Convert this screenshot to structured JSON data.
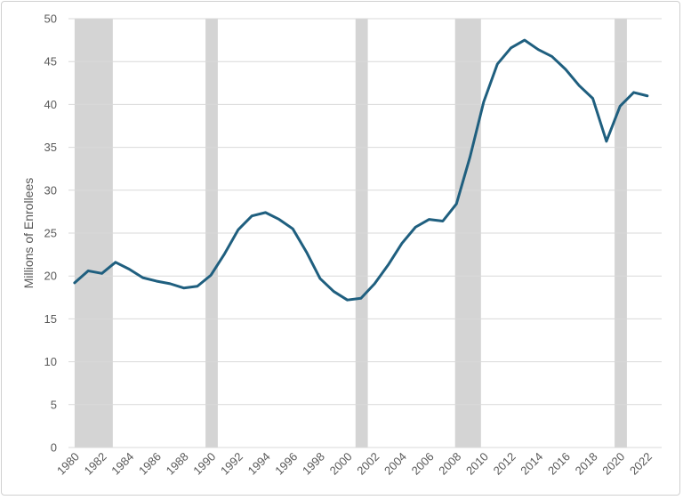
{
  "chart_data": {
    "type": "line",
    "title": "",
    "xlabel": "",
    "ylabel": "Millions of Enrollees",
    "xlim": [
      1980,
      2023
    ],
    "ylim": [
      0,
      50
    ],
    "yticks": [
      0,
      5,
      10,
      15,
      20,
      25,
      30,
      35,
      40,
      45,
      50
    ],
    "xticks": [
      1980,
      1982,
      1984,
      1986,
      1988,
      1990,
      1992,
      1994,
      1996,
      1998,
      2000,
      2002,
      2004,
      2006,
      2008,
      2010,
      2012,
      2014,
      2016,
      2018,
      2020,
      2022
    ],
    "grid": true,
    "legend": "none",
    "line_color": "#1f5f7f",
    "band_color": "#d4d4d4",
    "gridline_color": "#d9d9d9",
    "shaded_periods": [
      {
        "start": 1980,
        "end": 1982.8
      },
      {
        "start": 1989.6,
        "end": 1990.5
      },
      {
        "start": 2000.6,
        "end": 2001.5
      },
      {
        "start": 2007.9,
        "end": 2009.8
      },
      {
        "start": 2019.6,
        "end": 2020.5
      }
    ],
    "series": [
      {
        "x": [
          1980,
          1981,
          1982,
          1983,
          1984,
          1985,
          1986,
          1987,
          1988,
          1989,
          1990,
          1991,
          1992,
          1993,
          1994,
          1995,
          1996,
          1997,
          1998,
          1999,
          2000,
          2001,
          2002,
          2003,
          2004,
          2005,
          2006,
          2007,
          2008,
          2009,
          2010,
          2011,
          2012,
          2013,
          2014,
          2015,
          2016,
          2017,
          2018,
          2019,
          2020,
          2021,
          2022
        ],
        "values": [
          19.2,
          20.6,
          20.3,
          21.6,
          20.8,
          19.8,
          19.4,
          19.1,
          18.6,
          18.8,
          20.1,
          22.6,
          25.4,
          27.0,
          27.4,
          26.6,
          25.5,
          22.8,
          19.7,
          18.2,
          17.2,
          17.4,
          19.1,
          21.3,
          23.8,
          25.7,
          26.6,
          26.4,
          28.4,
          33.9,
          40.3,
          44.7,
          46.6,
          47.5,
          46.4,
          45.6,
          44.1,
          42.2,
          40.7,
          35.7,
          39.8,
          41.4,
          41.0
        ]
      }
    ]
  }
}
